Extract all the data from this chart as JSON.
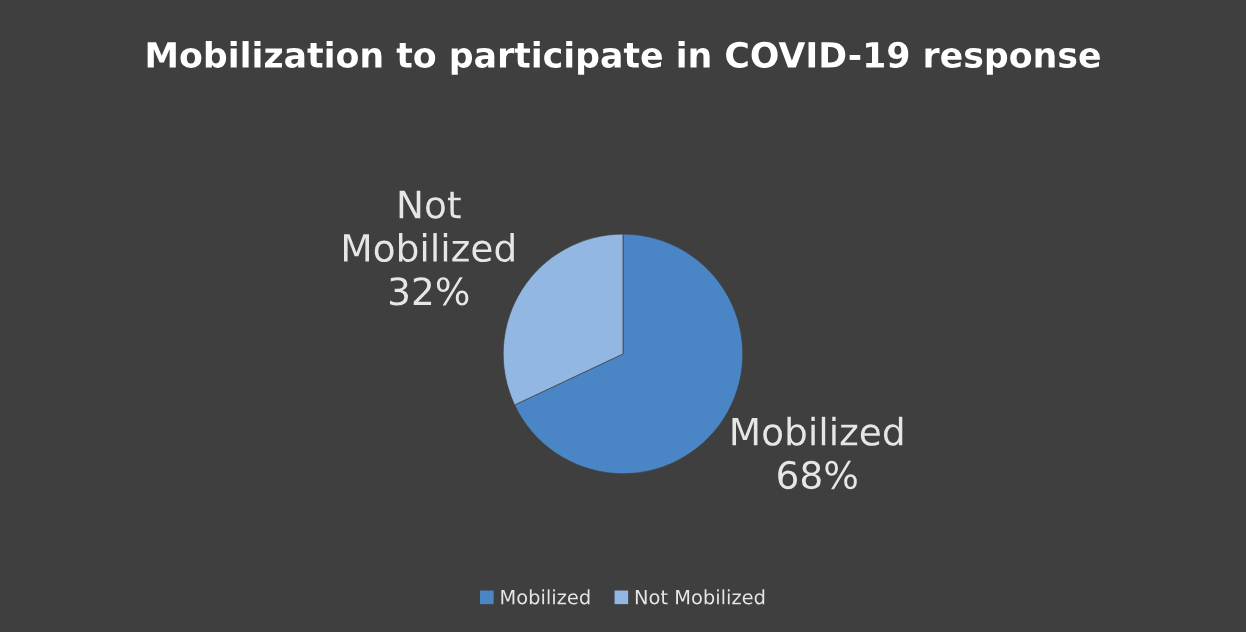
{
  "chart_data": {
    "type": "pie",
    "title": "Mobilization to participate in COVID-19 response",
    "categories": [
      "Mobilized",
      "Not Mobilized"
    ],
    "values": [
      68,
      32
    ],
    "value_labels": [
      "68%",
      "32%"
    ],
    "colors": [
      "#4a86c5",
      "#93b7e3"
    ],
    "legend": "bottom"
  }
}
